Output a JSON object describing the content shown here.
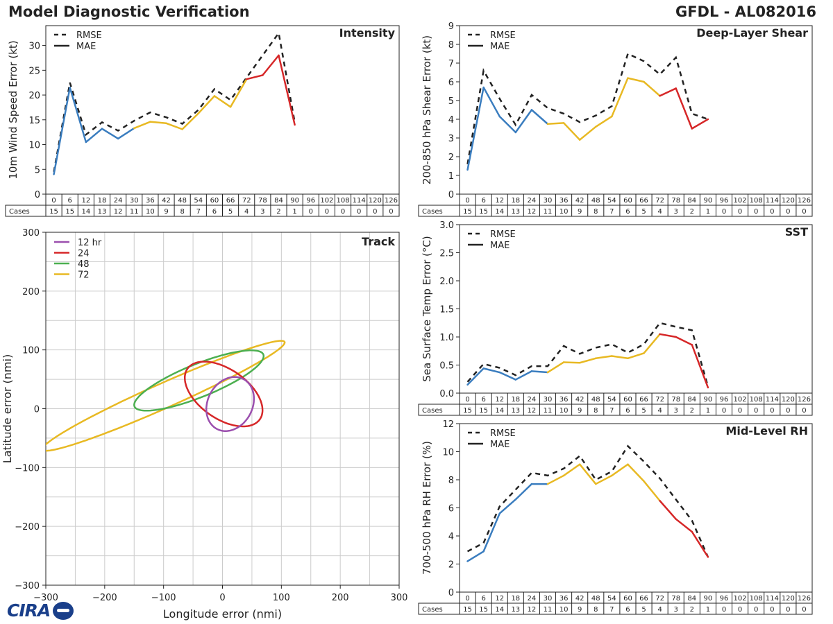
{
  "header": {
    "title": "Model Diagnostic Verification",
    "storm": "GFDL - AL082016"
  },
  "logo": {
    "text": "CIRA"
  },
  "forecast_hours": [
    "0",
    "6",
    "12",
    "18",
    "24",
    "30",
    "36",
    "42",
    "48",
    "54",
    "60",
    "66",
    "72",
    "78",
    "84",
    "90",
    "96",
    "102",
    "108",
    "114",
    "120",
    "126"
  ],
  "cases_label": "Cases",
  "cases": [
    "15",
    "15",
    "14",
    "13",
    "12",
    "11",
    "10",
    "9",
    "8",
    "7",
    "6",
    "5",
    "4",
    "3",
    "2",
    "1",
    "0",
    "0",
    "0",
    "0",
    "0",
    "0"
  ],
  "legend": {
    "rmse": "RMSE",
    "mae": "MAE"
  },
  "colors": {
    "blue": "#3a7dbf",
    "yellow": "#e8b923",
    "red": "#d62728",
    "purple": "#9b4fae",
    "green": "#4caf50",
    "black": "#222222"
  },
  "chart_data": [
    {
      "id": "intensity",
      "type": "line",
      "title": "Intensity",
      "ylabel": "10m Wind Speed Error (kt)",
      "ylim": [
        0,
        34
      ],
      "yticks": [
        0,
        5,
        10,
        15,
        20,
        25,
        30
      ],
      "x": [
        0,
        6,
        12,
        18,
        24,
        30,
        36,
        42,
        48,
        54,
        60,
        66,
        72,
        78,
        84,
        90
      ],
      "series": [
        {
          "name": "RMSE",
          "values": [
            4.5,
            22.5,
            12,
            14.5,
            12.8,
            14.8,
            16.5,
            15.5,
            14.2,
            17,
            21.2,
            19,
            23.5,
            28,
            32.5,
            14.5
          ]
        },
        {
          "name": "MAE",
          "values": [
            4,
            21.5,
            10.5,
            13.2,
            11.2,
            13.3,
            14.6,
            14.3,
            13.1,
            16.3,
            19.8,
            17.6,
            23.2,
            24,
            28,
            14
          ]
        }
      ]
    },
    {
      "id": "shear",
      "type": "line",
      "title": "Deep-Layer Shear",
      "ylabel": "200-850 hPa Shear Error (kt)",
      "ylim": [
        0,
        9
      ],
      "yticks": [
        0,
        1,
        2,
        3,
        4,
        5,
        6,
        7,
        8,
        9
      ],
      "x": [
        0,
        6,
        12,
        18,
        24,
        30,
        36,
        42,
        48,
        54,
        60,
        66,
        72,
        78,
        84,
        90
      ],
      "series": [
        {
          "name": "RMSE",
          "values": [
            1.6,
            6.6,
            5.1,
            3.7,
            5.3,
            4.6,
            4.3,
            3.85,
            4.2,
            4.7,
            7.5,
            7.1,
            6.4,
            7.3,
            4.3,
            4.0
          ]
        },
        {
          "name": "MAE",
          "values": [
            1.3,
            5.7,
            4.15,
            3.3,
            4.5,
            3.75,
            3.8,
            2.9,
            3.6,
            4.15,
            6.2,
            6.0,
            5.25,
            5.65,
            3.5,
            4.0
          ]
        }
      ]
    },
    {
      "id": "sst",
      "type": "line",
      "title": "SST",
      "ylabel": "Sea Surface Temp Error (°C)",
      "ylim": [
        0,
        3.0
      ],
      "yticks": [
        "0.0",
        "0.5",
        "1.0",
        "1.5",
        "2.0",
        "2.5",
        "3.0"
      ],
      "x": [
        0,
        6,
        12,
        18,
        24,
        30,
        36,
        42,
        48,
        54,
        60,
        66,
        72,
        78,
        84,
        90
      ],
      "series": [
        {
          "name": "RMSE",
          "values": [
            0.2,
            0.52,
            0.45,
            0.32,
            0.48,
            0.48,
            0.84,
            0.7,
            0.81,
            0.87,
            0.72,
            0.87,
            1.25,
            1.18,
            1.12,
            0.12
          ]
        },
        {
          "name": "MAE",
          "values": [
            0.15,
            0.44,
            0.37,
            0.24,
            0.39,
            0.37,
            0.55,
            0.54,
            0.62,
            0.66,
            0.62,
            0.71,
            1.05,
            1.0,
            0.86,
            0.1
          ]
        }
      ]
    },
    {
      "id": "rh",
      "type": "line",
      "title": "Mid-Level RH",
      "ylabel": "700-500 hPa RH Error (%)",
      "ylim": [
        0,
        12
      ],
      "yticks": [
        0,
        2,
        4,
        6,
        8,
        10,
        12
      ],
      "x": [
        0,
        6,
        12,
        18,
        24,
        30,
        36,
        42,
        48,
        54,
        60,
        66,
        72,
        78,
        84,
        90
      ],
      "series": [
        {
          "name": "RMSE",
          "values": [
            2.9,
            3.5,
            6.1,
            7.3,
            8.5,
            8.3,
            8.8,
            9.7,
            8.0,
            8.6,
            10.4,
            9.3,
            8.1,
            6.6,
            5.1,
            2.5
          ]
        },
        {
          "name": "MAE",
          "values": [
            2.2,
            2.9,
            5.6,
            6.6,
            7.7,
            7.7,
            8.3,
            9.1,
            7.7,
            8.3,
            9.1,
            7.9,
            6.5,
            5.2,
            4.3,
            2.5
          ]
        }
      ]
    },
    {
      "id": "track",
      "type": "scatter",
      "title": "Track",
      "xlabel": "Longitude error (nmi)",
      "ylabel": "Latitude error (nmi)",
      "xlim": [
        -300,
        300
      ],
      "ylim": [
        -300,
        300
      ],
      "xticks": [
        "−300",
        "−200",
        "−100",
        "0",
        "100",
        "200",
        "300"
      ],
      "yticks": [
        "−300",
        "−200",
        "−100",
        "0",
        "100",
        "200",
        "300"
      ],
      "ellipses": [
        {
          "name": "12 hr",
          "color": "purple",
          "cx": 13,
          "cy": 8,
          "rx": 38,
          "ry": 48,
          "angle": -28
        },
        {
          "name": "24",
          "color": "red",
          "cx": 2,
          "cy": 25,
          "rx": 75,
          "ry": 42,
          "angle": -35
        },
        {
          "name": "48",
          "color": "green",
          "cx": -40,
          "cy": 48,
          "rx": 118,
          "ry": 28,
          "angle": 22
        },
        {
          "name": "72",
          "color": "yellow",
          "cx": -100,
          "cy": 22,
          "rx": 225,
          "ry": 21,
          "angle": 24
        }
      ]
    }
  ]
}
